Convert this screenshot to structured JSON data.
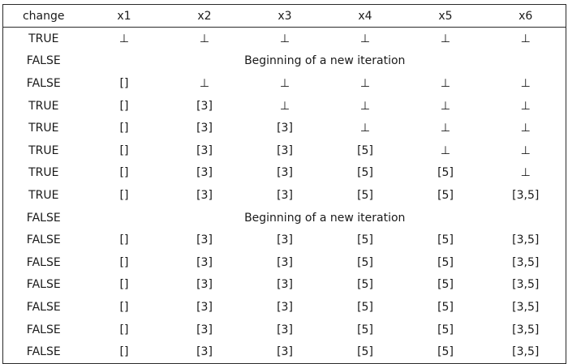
{
  "table": {
    "headers": [
      "change",
      "x1",
      "x2",
      "x3",
      "x4",
      "x5",
      "x6"
    ],
    "rows": [
      {
        "change": "TRUE",
        "cells": [
          "⊥",
          "⊥",
          "⊥",
          "⊥",
          "⊥",
          "⊥"
        ]
      },
      {
        "change": "FALSE",
        "note": "Beginning of a new iteration"
      },
      {
        "change": "FALSE",
        "cells": [
          "[]",
          "⊥",
          "⊥",
          "⊥",
          "⊥",
          "⊥"
        ]
      },
      {
        "change": "TRUE",
        "cells": [
          "[]",
          "[3]",
          "⊥",
          "⊥",
          "⊥",
          "⊥"
        ]
      },
      {
        "change": "TRUE",
        "cells": [
          "[]",
          "[3]",
          "[3]",
          "⊥",
          "⊥",
          "⊥"
        ]
      },
      {
        "change": "TRUE",
        "cells": [
          "[]",
          "[3]",
          "[3]",
          "[5]",
          "⊥",
          "⊥"
        ]
      },
      {
        "change": "TRUE",
        "cells": [
          "[]",
          "[3]",
          "[3]",
          "[5]",
          "[5]",
          "⊥"
        ]
      },
      {
        "change": "TRUE",
        "cells": [
          "[]",
          "[3]",
          "[3]",
          "[5]",
          "[5]",
          "[3,5]"
        ]
      },
      {
        "change": "FALSE",
        "note": "Beginning of a new iteration"
      },
      {
        "change": "FALSE",
        "cells": [
          "[]",
          "[3]",
          "[3]",
          "[5]",
          "[5]",
          "[3,5]"
        ]
      },
      {
        "change": "FALSE",
        "cells": [
          "[]",
          "[3]",
          "[3]",
          "[5]",
          "[5]",
          "[3,5]"
        ]
      },
      {
        "change": "FALSE",
        "cells": [
          "[]",
          "[3]",
          "[3]",
          "[5]",
          "[5]",
          "[3,5]"
        ]
      },
      {
        "change": "FALSE",
        "cells": [
          "[]",
          "[3]",
          "[3]",
          "[5]",
          "[5]",
          "[3,5]"
        ]
      },
      {
        "change": "FALSE",
        "cells": [
          "[]",
          "[3]",
          "[3]",
          "[5]",
          "[5]",
          "[3,5]"
        ]
      },
      {
        "change": "FALSE",
        "cells": [
          "[]",
          "[3]",
          "[3]",
          "[5]",
          "[5]",
          "[3,5]"
        ]
      }
    ]
  }
}
